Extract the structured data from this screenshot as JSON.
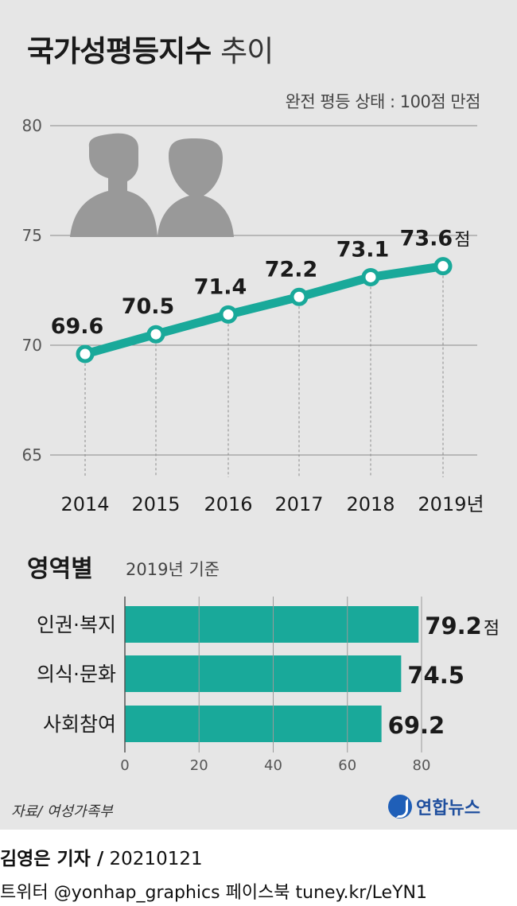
{
  "colors": {
    "accent": "#19a99a",
    "panel": "#e6e6e6",
    "icon": "#999999",
    "logo": "#1f5fb8"
  },
  "chart_data": [
    {
      "type": "line",
      "title_main": "국가성평등지수",
      "title_sub": "추이",
      "note": "완전 평등 상태 : 100점 만점",
      "x": [
        "2014",
        "2015",
        "2016",
        "2017",
        "2018",
        "2019"
      ],
      "x_unit": "년",
      "values": [
        69.6,
        70.5,
        71.4,
        72.2,
        73.1,
        73.6
      ],
      "value_labels": [
        "69.6",
        "70.5",
        "71.4",
        "72.2",
        "73.1",
        "73.6"
      ],
      "value_unit": "점",
      "yticks": [
        "80",
        "75",
        "70",
        "65"
      ],
      "ylim": [
        65,
        80
      ],
      "grid": true
    },
    {
      "type": "bar",
      "orientation": "horizontal",
      "title": "영역별",
      "subtitle": "2019년 기준",
      "categories": [
        "인권·복지",
        "의식·문화",
        "사회참여"
      ],
      "values": [
        79.2,
        74.5,
        69.2
      ],
      "value_labels": [
        "79.2",
        "74.5",
        "69.2"
      ],
      "value_unit": "점",
      "xticks": [
        "0",
        "20",
        "40",
        "60",
        "80"
      ],
      "xlim": [
        0,
        80
      ],
      "grid": true
    }
  ],
  "footer": {
    "source": "자료/ 여성가족부",
    "logo_text": "연합뉴스",
    "reporter": "김영은 기자 /",
    "date": "20210121",
    "social": "트위터 @yonhap_graphics  페이스북 tuney.kr/LeYN1"
  }
}
